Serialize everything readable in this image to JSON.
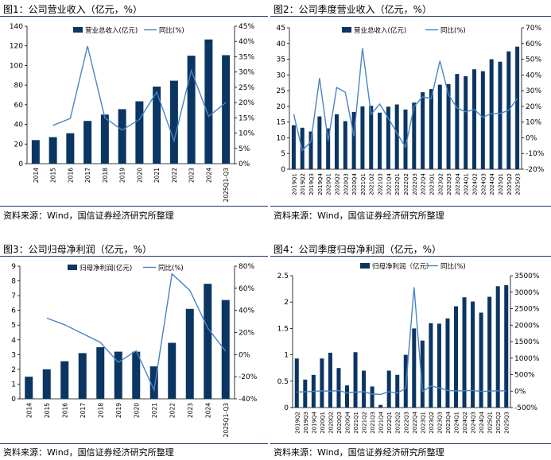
{
  "colors": {
    "bar": "#0b3563",
    "line": "#4a84c4",
    "rule": "#1f3864"
  },
  "legend": {
    "line": "同比(%)"
  },
  "source": "资料来源：Wind，国信证券经济研究所整理",
  "chart_data": [
    {
      "type": "bar",
      "title": "图1：公司营业收入（亿元，%）",
      "bar_name": "营业总收入(亿元)",
      "line_name": "同比(%)",
      "categories": [
        "2014",
        "2015",
        "2016",
        "2017",
        "2018",
        "2019",
        "2020",
        "2021",
        "2022",
        "2023",
        "2024",
        "2025Q1-Q3"
      ],
      "values": [
        24,
        27,
        31,
        43.5,
        50,
        55.5,
        63.5,
        78.5,
        84.5,
        110,
        126.5,
        110.5
      ],
      "line_values": [
        null,
        12.5,
        14.8,
        38.5,
        15,
        11,
        14.5,
        23.5,
        7.5,
        30.5,
        15.5,
        20
      ],
      "yticks": [
        0,
        20,
        40,
        60,
        80,
        100,
        120,
        140
      ],
      "y2ticks": [
        "0%",
        "5%",
        "10%",
        "15%",
        "20%",
        "25%",
        "30%",
        "35%",
        "40%",
        "45%"
      ],
      "ylim": [
        0,
        140
      ],
      "y2lim": [
        0,
        45
      ]
    },
    {
      "type": "bar",
      "title": "图2：公司季度营业收入（亿元，%）",
      "bar_name": "营业总收入(亿元)",
      "line_name": "同比(%)",
      "categories": [
        "2019Q1",
        "2019Q2",
        "2019Q3",
        "2019Q4",
        "2020Q1",
        "2020Q2",
        "2020Q3",
        "2020Q4",
        "2021Q1",
        "2021Q2",
        "2021Q3",
        "2021Q4",
        "2022Q1",
        "2022Q2",
        "2022Q3",
        "2022Q4",
        "2023Q1",
        "2023Q2",
        "2023Q3",
        "2023Q4",
        "2024Q1",
        "2024Q2",
        "2024Q3",
        "2024Q4",
        "2025Q1",
        "2025Q2",
        "2025Q3"
      ],
      "values": [
        14,
        13.2,
        12,
        16.8,
        13,
        17.5,
        15.3,
        18.2,
        20,
        20.2,
        18,
        19.9,
        20.6,
        19,
        21.2,
        24.5,
        25.5,
        26.9,
        27.1,
        30.3,
        29.6,
        31.8,
        31.2,
        35,
        34.2,
        37.5,
        39
      ],
      "line_values": [
        15,
        -8,
        -2.5,
        38,
        -2,
        32,
        29,
        1,
        57,
        15,
        21.5,
        12.5,
        3,
        -6,
        20,
        26,
        25,
        49,
        27.5,
        19,
        16.5,
        18,
        13,
        15.5,
        15.5,
        17.5,
        25
      ],
      "yticks": [
        0,
        5,
        10,
        15,
        20,
        25,
        30,
        35,
        40,
        45
      ],
      "y2ticks": [
        "-20%",
        "-10%",
        "0%",
        "10%",
        "20%",
        "30%",
        "40%",
        "50%",
        "60%",
        "70%"
      ],
      "ylim": [
        0,
        45
      ],
      "y2lim": [
        -20,
        70
      ]
    },
    {
      "type": "bar",
      "title": "图3：公司归母净利润（亿元，%）",
      "bar_name": "归母净利润(亿元)",
      "line_name": "同比(%)",
      "categories": [
        "2014",
        "2015",
        "2016",
        "2017",
        "2018",
        "2019",
        "2020",
        "2021",
        "2022",
        "2023",
        "2024",
        "2025Q1-Q3"
      ],
      "values": [
        1.5,
        2,
        2.55,
        3.1,
        3.5,
        3.2,
        3.2,
        2.2,
        3.8,
        6.1,
        7.8,
        6.7
      ],
      "line_values": [
        null,
        33,
        27,
        19,
        11,
        -7,
        3.5,
        -32,
        73,
        58,
        24,
        3
      ],
      "yticks": [
        0,
        1,
        2,
        3,
        4,
        5,
        6,
        7,
        8,
        9
      ],
      "y2ticks": [
        "-40%",
        "-20%",
        "0%",
        "20%",
        "40%",
        "60%",
        "80%"
      ],
      "ylim": [
        0,
        9
      ],
      "y2lim": [
        -40,
        80
      ]
    },
    {
      "type": "bar",
      "title": "图4：公司季度归母净利润（亿元，%）",
      "bar_name": "归母净利润（亿元）",
      "line_name": "同比(%)",
      "categories": [
        "2019Q2",
        "2019Q3",
        "2019Q4",
        "2020Q1",
        "2020Q2",
        "2020Q3",
        "2020Q4",
        "2021Q1",
        "2021Q2",
        "2021Q3",
        "2021Q4",
        "2022Q1",
        "2022Q2",
        "2022Q3",
        "2022Q4",
        "2023Q1",
        "2023Q2",
        "2023Q3",
        "2023Q4",
        "2024Q1",
        "2024Q2",
        "2024Q3",
        "2024Q4",
        "2025Q1",
        "2025Q2",
        "2025Q3"
      ],
      "values": [
        0.93,
        0.53,
        0.62,
        0.93,
        1.04,
        0.75,
        0.42,
        1.05,
        0.7,
        0.4,
        0.05,
        0.7,
        0.62,
        1,
        1.5,
        1.27,
        1.6,
        1.59,
        1.69,
        1.92,
        2.09,
        2.01,
        1.8,
        2.1,
        2.3,
        2.32
      ],
      "line_values": [
        -30,
        -20,
        -10,
        10,
        -5,
        20,
        -60,
        -30,
        -20,
        -90,
        -100,
        -20,
        -60,
        80,
        3150,
        -10,
        150,
        100,
        20,
        5,
        10,
        20,
        -10,
        0,
        10,
        5
      ],
      "yticks": [
        0,
        0.5,
        1,
        1.5,
        2,
        2.5
      ],
      "y2ticks": [
        "-500%",
        "0%",
        "500%",
        "1000%",
        "1500%",
        "2000%",
        "2500%",
        "3000%",
        "3500%"
      ],
      "ylim": [
        0,
        2.5
      ],
      "y2lim": [
        -500,
        3500
      ]
    }
  ]
}
